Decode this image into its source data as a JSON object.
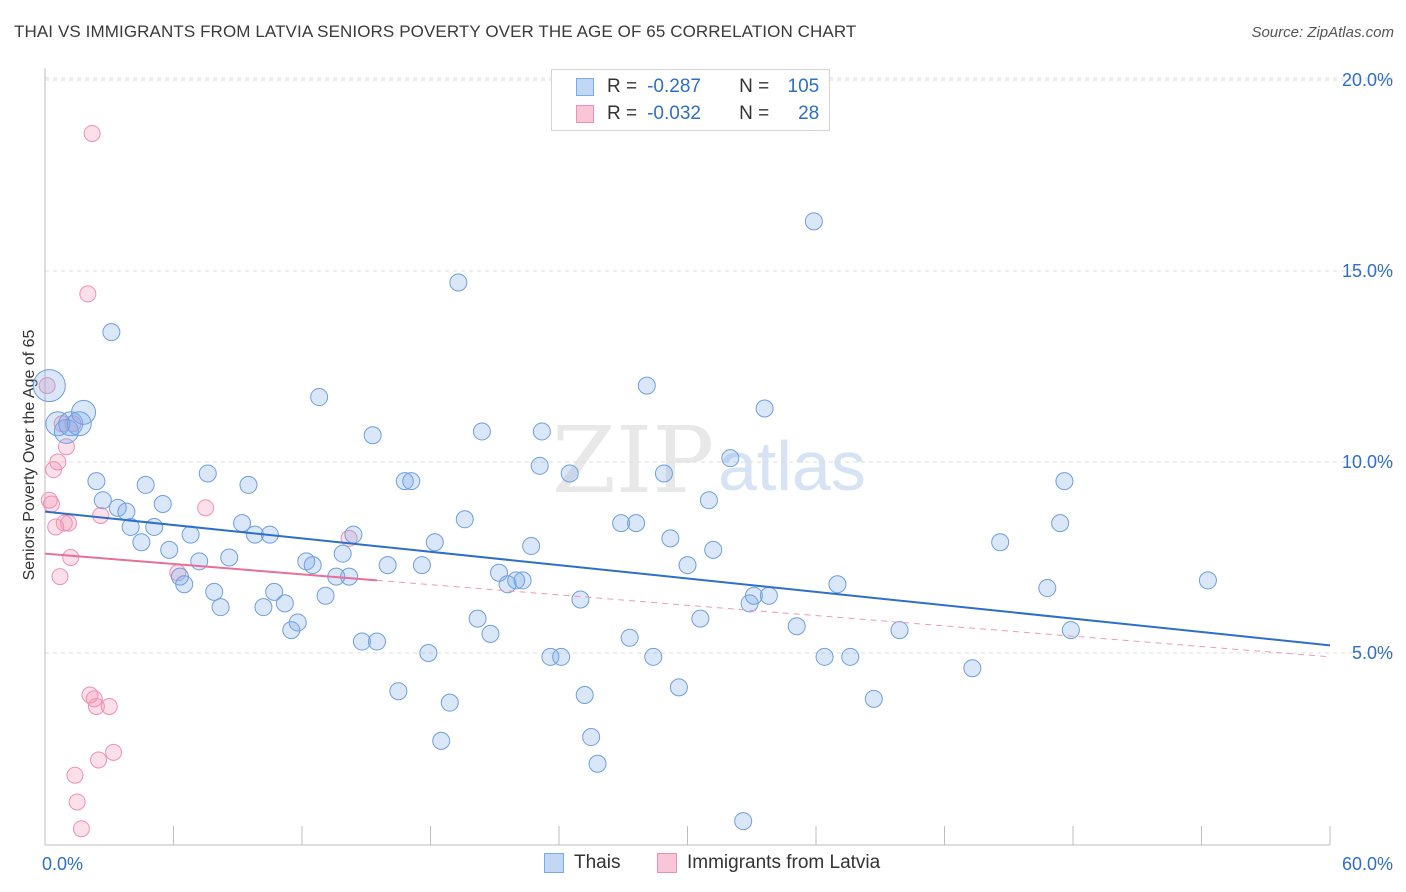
{
  "header": {
    "title": "THAI VS IMMIGRANTS FROM LATVIA SENIORS POVERTY OVER THE AGE OF 65 CORRELATION CHART",
    "source": "Source: ZipAtlas.com"
  },
  "watermark": {
    "zip": "ZIP",
    "atlas": "atlas"
  },
  "legend": {
    "rows": [
      {
        "r_label": "R =",
        "r_value": "-0.287",
        "n_label": "N =",
        "n_value": "105",
        "color": "#7aaae8"
      },
      {
        "r_label": "R =",
        "r_value": "-0.032",
        "n_label": "N =",
        "n_value": "28",
        "color": "#f090b0"
      }
    ]
  },
  "bottom_legend": {
    "items": [
      "Thais",
      "Immigrants from Latvia"
    ]
  },
  "chart_data": {
    "type": "scatter",
    "title": "THAI VS IMMIGRANTS FROM LATVIA SENIORS POVERTY OVER THE AGE OF 65 CORRELATION CHART",
    "xlabel": "",
    "ylabel": "Seniors Poverty Over the Age of 65",
    "xlim": [
      0,
      60
    ],
    "ylim": [
      0,
      20.5
    ],
    "x_tick_labels": [
      "0.0%",
      "60.0%"
    ],
    "y_ticks": [
      5,
      10,
      15,
      20
    ],
    "y_tick_labels": [
      "5.0%",
      "10.0%",
      "15.0%",
      "20.0%"
    ],
    "grid": true,
    "legend_position": "top-center",
    "series": [
      {
        "name": "Thais",
        "color": "#7aaae8",
        "trend": {
          "x": [
            0,
            60
          ],
          "y": [
            8.7,
            5.2
          ]
        },
        "points": [
          [
            0.2,
            12.0
          ],
          [
            0.6,
            11.0
          ],
          [
            1.0,
            10.8
          ],
          [
            1.2,
            11.0
          ],
          [
            1.6,
            11.0
          ],
          [
            1.8,
            11.3
          ],
          [
            3.1,
            13.4
          ],
          [
            2.4,
            9.5
          ],
          [
            2.7,
            9.0
          ],
          [
            3.4,
            8.8
          ],
          [
            3.8,
            8.7
          ],
          [
            4.0,
            8.3
          ],
          [
            4.5,
            7.9
          ],
          [
            4.7,
            9.4
          ],
          [
            5.1,
            8.3
          ],
          [
            5.5,
            8.9
          ],
          [
            5.8,
            7.7
          ],
          [
            6.3,
            7.0
          ],
          [
            6.5,
            6.8
          ],
          [
            6.8,
            8.1
          ],
          [
            7.2,
            7.4
          ],
          [
            7.6,
            9.7
          ],
          [
            7.9,
            6.6
          ],
          [
            8.2,
            6.2
          ],
          [
            8.6,
            7.5
          ],
          [
            9.2,
            8.4
          ],
          [
            9.5,
            9.4
          ],
          [
            9.8,
            8.1
          ],
          [
            10.2,
            6.2
          ],
          [
            10.5,
            8.1
          ],
          [
            10.7,
            6.6
          ],
          [
            11.2,
            6.3
          ],
          [
            11.5,
            5.6
          ],
          [
            11.8,
            5.8
          ],
          [
            12.2,
            7.4
          ],
          [
            12.5,
            7.3
          ],
          [
            12.8,
            11.7
          ],
          [
            13.1,
            6.5
          ],
          [
            13.6,
            7.0
          ],
          [
            13.9,
            7.6
          ],
          [
            14.2,
            7.0
          ],
          [
            14.4,
            8.1
          ],
          [
            14.8,
            5.3
          ],
          [
            15.3,
            10.7
          ],
          [
            15.5,
            5.3
          ],
          [
            16.0,
            7.3
          ],
          [
            16.5,
            4.0
          ],
          [
            16.8,
            9.5
          ],
          [
            17.1,
            9.5
          ],
          [
            17.6,
            7.3
          ],
          [
            17.9,
            5.0
          ],
          [
            18.2,
            7.9
          ],
          [
            18.5,
            2.7
          ],
          [
            18.9,
            3.7
          ],
          [
            19.3,
            14.7
          ],
          [
            19.6,
            8.5
          ],
          [
            20.2,
            5.9
          ],
          [
            20.4,
            10.8
          ],
          [
            20.8,
            5.5
          ],
          [
            21.2,
            7.1
          ],
          [
            21.6,
            6.8
          ],
          [
            22.0,
            6.9
          ],
          [
            22.3,
            6.9
          ],
          [
            22.7,
            7.8
          ],
          [
            23.1,
            9.9
          ],
          [
            23.2,
            10.8
          ],
          [
            23.6,
            4.9
          ],
          [
            24.1,
            4.9
          ],
          [
            24.5,
            9.7
          ],
          [
            25.0,
            6.4
          ],
          [
            25.2,
            3.9
          ],
          [
            25.5,
            2.8
          ],
          [
            25.8,
            2.1
          ],
          [
            26.9,
            8.4
          ],
          [
            27.3,
            5.4
          ],
          [
            27.6,
            8.4
          ],
          [
            28.1,
            12.0
          ],
          [
            28.4,
            4.9
          ],
          [
            28.9,
            9.7
          ],
          [
            29.2,
            8.0
          ],
          [
            29.6,
            4.1
          ],
          [
            30.0,
            7.3
          ],
          [
            30.6,
            5.9
          ],
          [
            31.0,
            9.0
          ],
          [
            31.2,
            7.7
          ],
          [
            32.0,
            10.1
          ],
          [
            32.6,
            0.6
          ],
          [
            32.9,
            6.3
          ],
          [
            33.1,
            6.5
          ],
          [
            33.6,
            11.4
          ],
          [
            33.8,
            6.5
          ],
          [
            35.1,
            5.7
          ],
          [
            35.9,
            16.3
          ],
          [
            36.4,
            4.9
          ],
          [
            37.0,
            6.8
          ],
          [
            37.6,
            4.9
          ],
          [
            38.7,
            3.8
          ],
          [
            39.9,
            5.6
          ],
          [
            43.3,
            4.6
          ],
          [
            44.6,
            7.9
          ],
          [
            46.8,
            6.7
          ],
          [
            47.4,
            8.4
          ],
          [
            47.6,
            9.5
          ],
          [
            47.9,
            5.6
          ],
          [
            54.3,
            6.9
          ]
        ]
      },
      {
        "name": "Immigrants from Latvia",
        "color": "#f090b0",
        "trend": {
          "x": [
            0,
            60
          ],
          "y": [
            7.6,
            4.9
          ]
        },
        "points": [
          [
            0.1,
            12.0
          ],
          [
            0.2,
            9.0
          ],
          [
            0.3,
            8.9
          ],
          [
            0.4,
            9.8
          ],
          [
            0.5,
            8.3
          ],
          [
            0.6,
            10.0
          ],
          [
            0.7,
            7.0
          ],
          [
            0.8,
            11.0
          ],
          [
            0.9,
            8.4
          ],
          [
            1.0,
            10.4
          ],
          [
            1.1,
            8.4
          ],
          [
            1.2,
            7.5
          ],
          [
            1.3,
            11.0
          ],
          [
            1.4,
            1.8
          ],
          [
            1.5,
            1.1
          ],
          [
            1.7,
            0.4
          ],
          [
            2.0,
            14.4
          ],
          [
            2.1,
            3.9
          ],
          [
            2.2,
            18.6
          ],
          [
            2.3,
            3.8
          ],
          [
            2.4,
            3.6
          ],
          [
            2.5,
            2.2
          ],
          [
            2.6,
            8.6
          ],
          [
            3.0,
            3.6
          ],
          [
            3.2,
            2.4
          ],
          [
            6.2,
            7.1
          ],
          [
            7.5,
            8.8
          ],
          [
            14.2,
            8.0
          ]
        ]
      }
    ]
  }
}
